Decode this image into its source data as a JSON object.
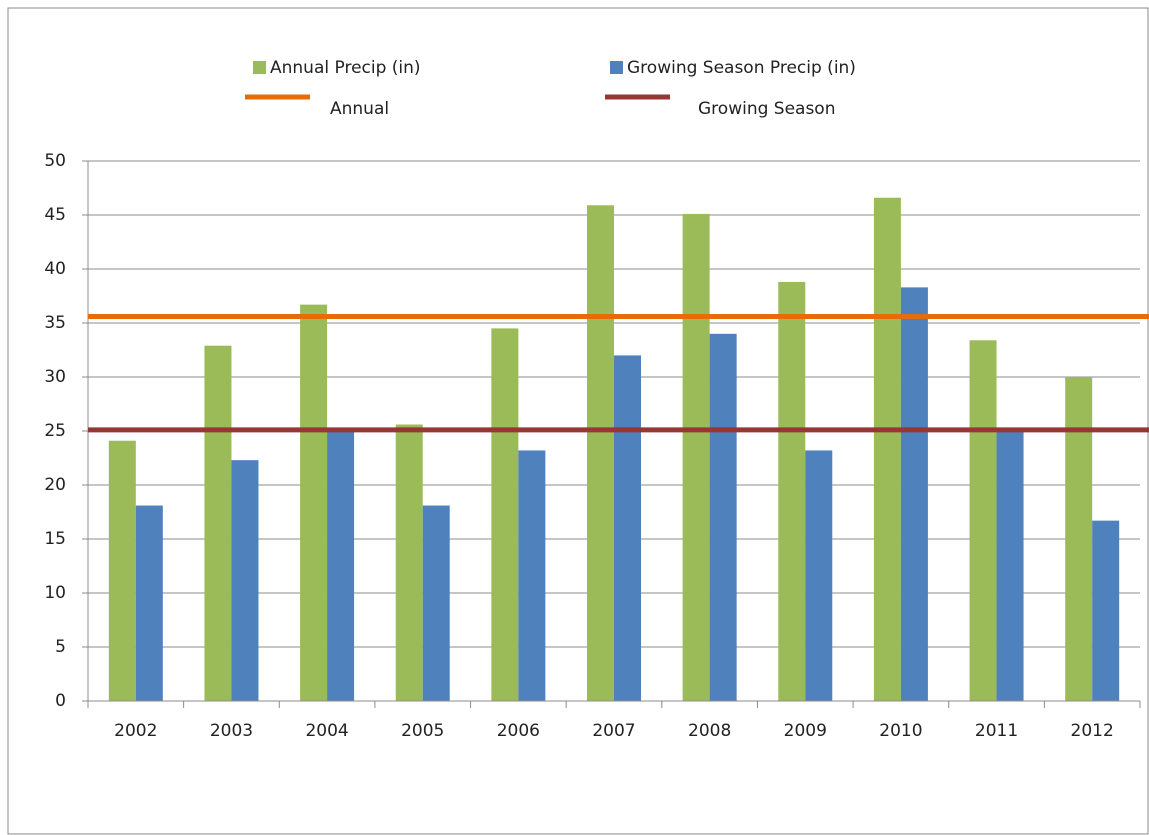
{
  "chart_data": {
    "type": "bar",
    "categories": [
      "2002",
      "2003",
      "2004",
      "2005",
      "2006",
      "2007",
      "2008",
      "2009",
      "2010",
      "2011",
      "2012"
    ],
    "series": [
      {
        "name": "Annual Precip (in)",
        "color": "#9bbb59",
        "values": [
          24.1,
          32.9,
          36.7,
          25.6,
          34.5,
          45.9,
          45.1,
          38.8,
          46.6,
          33.4,
          30.0
        ]
      },
      {
        "name": "Growing Season Precip (in)",
        "color": "#4f81bd",
        "values": [
          18.1,
          22.3,
          25.1,
          18.1,
          23.2,
          32.0,
          34.0,
          23.2,
          38.3,
          25.1,
          16.7
        ]
      }
    ],
    "reference_lines": [
      {
        "name": "Annual",
        "color": "#e46c0a",
        "value": 35.6
      },
      {
        "name": "Growing Season",
        "color": "#953735",
        "value": 25.1
      }
    ],
    "ylim": [
      0,
      50
    ],
    "yticks": [
      0,
      5,
      10,
      15,
      20,
      25,
      30,
      35,
      40,
      45,
      50
    ],
    "grid": true
  }
}
